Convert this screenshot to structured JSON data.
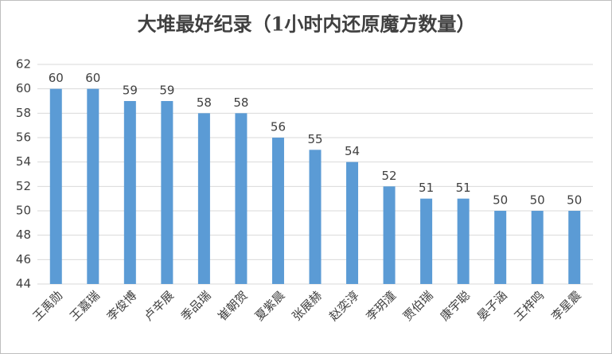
{
  "chart_data": {
    "type": "bar",
    "title": "大堆最好纪录（1小时内还原魔方数量）",
    "categories": [
      "王禹勋",
      "王嘉瑞",
      "李俊博",
      "卢辛展",
      "季品瑞",
      "崔朝贺",
      "夏紫晨",
      "张展赫",
      "赵奕淳",
      "李玥潼",
      "贾伯瑞",
      "康宇聪",
      "晏子涵",
      "王梓鸣",
      "李星震"
    ],
    "values": [
      60,
      60,
      59,
      59,
      58,
      58,
      56,
      55,
      54,
      52,
      51,
      51,
      50,
      50,
      50
    ],
    "color": "#5b9bd5",
    "ylim": [
      44,
      62
    ],
    "yticks": [
      44,
      46,
      48,
      50,
      52,
      54,
      56,
      58,
      60,
      62
    ],
    "grid": true
  }
}
